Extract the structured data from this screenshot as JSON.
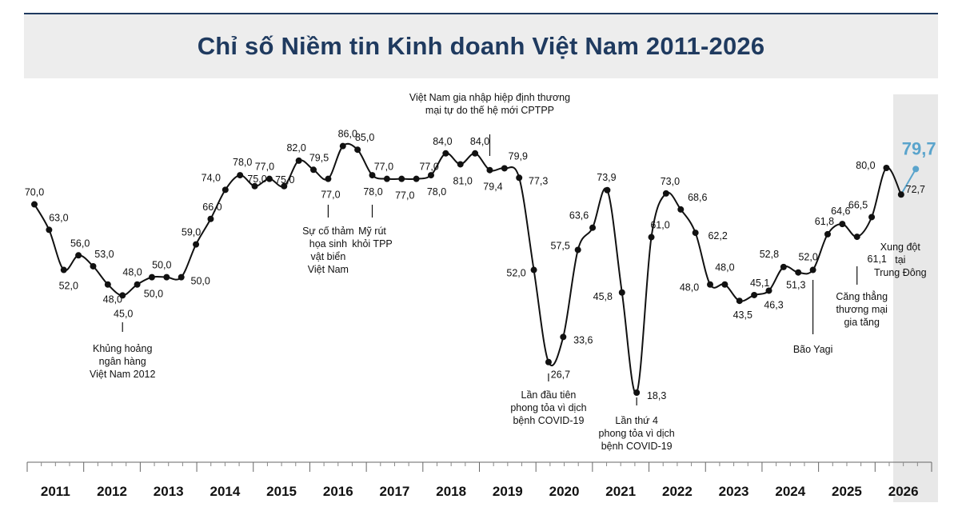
{
  "title": "Chỉ số Niềm tin Kinh doanh Việt Nam 2011-2026",
  "colors": {
    "title": "#1f3a5f",
    "line": "#111111",
    "highlight": "#5aa4cc",
    "shade": "#e8e8e8"
  },
  "chart_data": {
    "type": "line",
    "title": "Chỉ số Niềm tin Kinh doanh Việt Nam 2011-2026",
    "xlabel": "",
    "ylabel": "",
    "ylim": [
      15,
      90
    ],
    "grid": false,
    "years": [
      "2011",
      "2012",
      "2013",
      "2014",
      "2015",
      "2016",
      "2017",
      "2018",
      "2019",
      "2020",
      "2021",
      "2022",
      "2023",
      "2024",
      "2025",
      "2026"
    ],
    "values": [
      "70,0",
      "63,0",
      "52,0",
      "56,0",
      "53,0",
      "48,0",
      "45,0",
      "48,0",
      "50,0",
      "50,0",
      "50,0",
      "59,0",
      "66,0",
      "74,0",
      "78,0",
      "75,0",
      "77,0",
      "75,0",
      "82,0",
      "79,5",
      "77,0",
      "86,0",
      "85,0",
      "78,0",
      "77,0",
      "77,0",
      "77,0",
      "78,0",
      "84,0",
      "81,0",
      "84,0",
      "79,4",
      "79,9",
      "77,3",
      "52,0",
      "26,7",
      "33,6",
      "57,5",
      "63,6",
      "73,9",
      "45,8",
      "18,3",
      "61,0",
      "73,0",
      "68,6",
      "62,2",
      "48,0",
      "48,0",
      "43,5",
      "45,1",
      "46,3",
      "52,8",
      "51,3",
      "52,0",
      "61,8",
      "64,6",
      "61,1",
      "66,5",
      "80,0",
      "72,7",
      "79,7"
    ],
    "highlight_last": "79,7",
    "annotations": [
      {
        "point": 6,
        "text": [
          "Khủng hoảng",
          "ngân hàng",
          "Việt Nam 2012"
        ]
      },
      {
        "point": 20,
        "text": [
          "Sự cố thảm",
          "họa sinh",
          "vật biển",
          "Việt Nam"
        ]
      },
      {
        "point": 23,
        "text": [
          "Mỹ rút",
          "khỏi TPP"
        ]
      },
      {
        "point": 31,
        "text": [
          "Việt Nam gia nhập hiệp định thương",
          "mại tự do thế hệ mới CPTPP"
        ]
      },
      {
        "point": 35,
        "text": [
          "Lần đầu tiên",
          "phong tỏa vì dịch",
          "bệnh COVID-19"
        ]
      },
      {
        "point": 41,
        "text": [
          "Lần thứ 4",
          "phong tỏa vì dịch",
          "bệnh COVID-19"
        ]
      },
      {
        "point": 53,
        "text": [
          "Bão Yagi"
        ]
      },
      {
        "point": 56,
        "text": [
          "Căng thẳng",
          "thương mại",
          "gia tăng"
        ]
      },
      {
        "point": 59,
        "text": [
          "Xung đột",
          "tại",
          "Trung Đông"
        ]
      }
    ]
  }
}
